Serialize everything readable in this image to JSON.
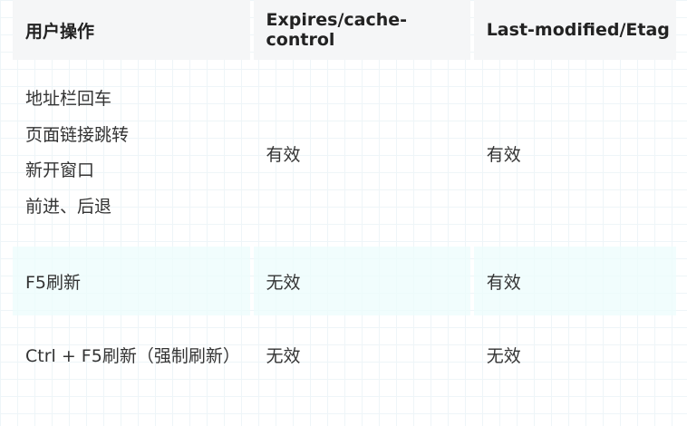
{
  "table": {
    "headers": [
      "用户操作",
      "Expires/cache-control",
      "Last-modified/Etag"
    ],
    "rows": [
      {
        "actions": [
          "地址栏回车",
          "页面链接跳转",
          "新开窗口",
          "前进、后退"
        ],
        "expires": "有效",
        "etag": "有效"
      },
      {
        "actions": [
          "F5刷新"
        ],
        "expires": "无效",
        "etag": "有效"
      },
      {
        "actions": [
          "Ctrl + F5刷新（强制刷新）"
        ],
        "expires": "无效",
        "etag": "无效"
      }
    ]
  }
}
